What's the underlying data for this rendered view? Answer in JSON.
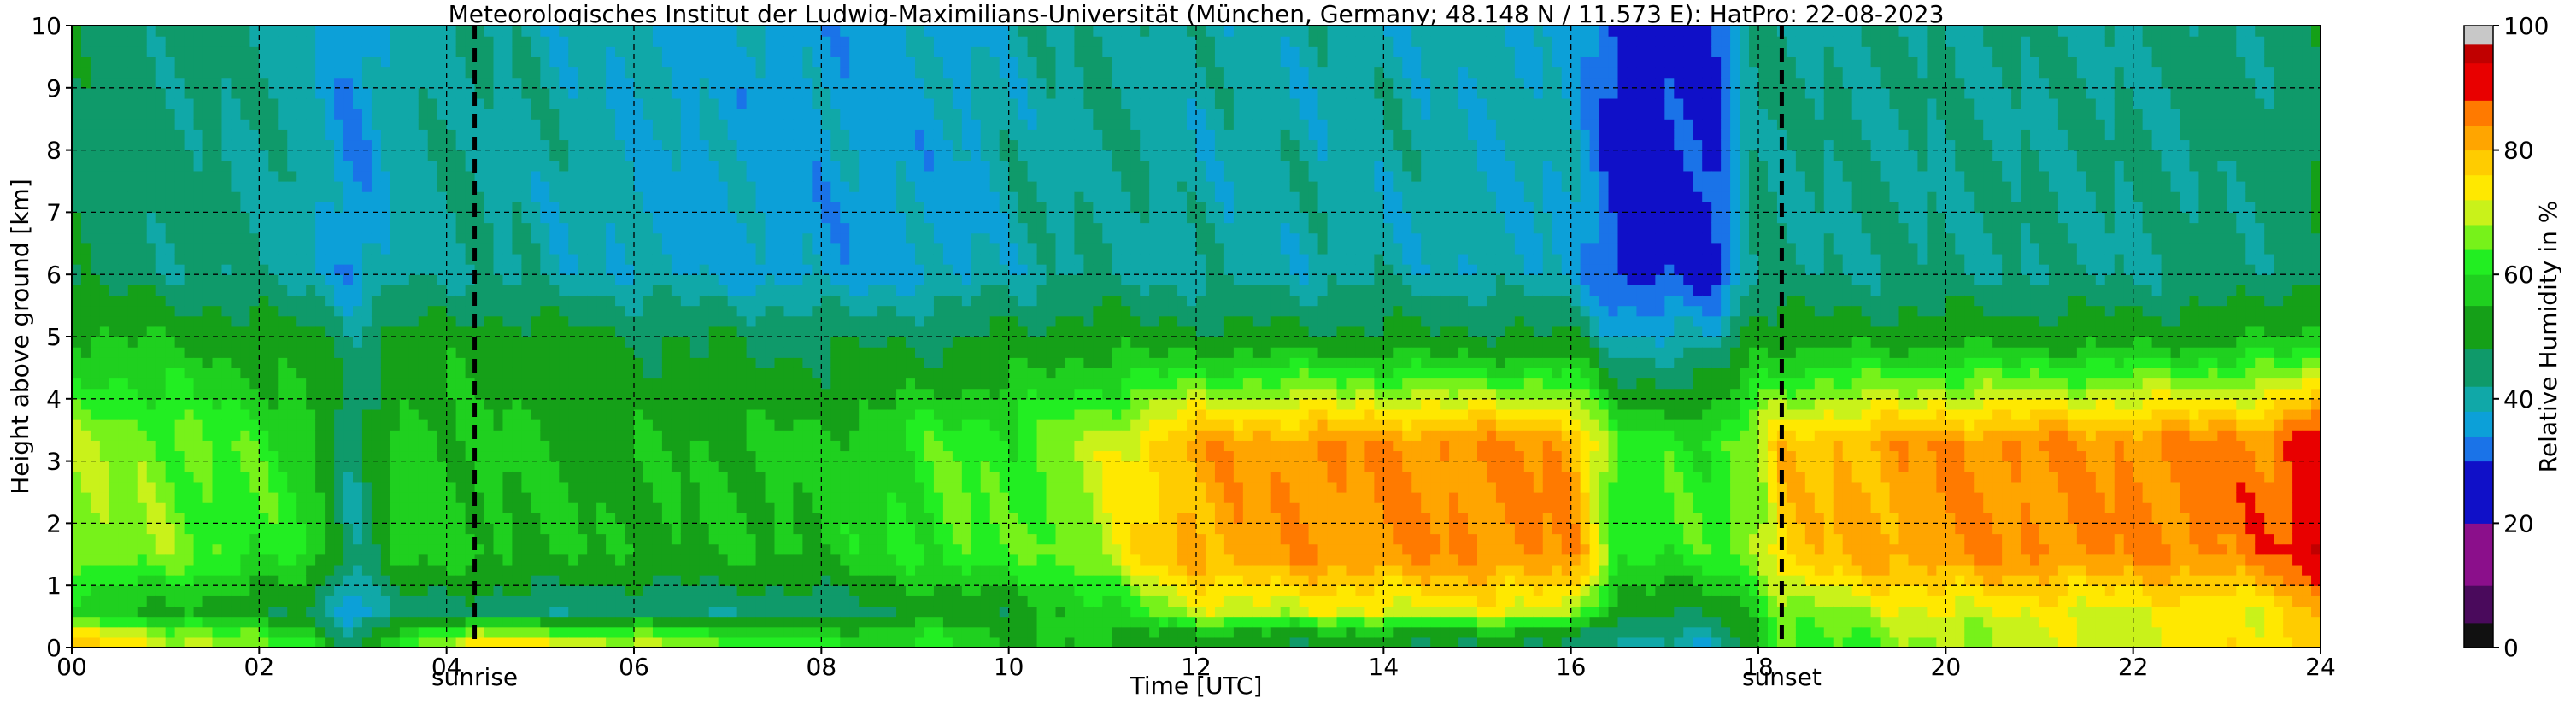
{
  "chart_data": {
    "type": "heatmap",
    "title": "Meteorologisches Institut der Ludwig-Maximilians-Universität (München, Germany; 48.148 N / 11.573 E):    HatPro: 22-08-2023",
    "xlabel": "Time [UTC]",
    "ylabel": "Height above ground [km]",
    "colorbar_label": "Relative Humidity in %",
    "xlim": [
      0,
      24
    ],
    "ylim": [
      0,
      10
    ],
    "x_ticks": [
      0,
      2,
      4,
      6,
      8,
      10,
      12,
      14,
      16,
      18,
      20,
      22,
      24
    ],
    "x_tick_labels": [
      "00",
      "02",
      "04",
      "06",
      "08",
      "10",
      "12",
      "14",
      "16",
      "18",
      "20",
      "22",
      "24"
    ],
    "y_ticks": [
      0,
      1,
      2,
      3,
      4,
      5,
      6,
      7,
      8,
      9,
      10
    ],
    "y_tick_labels": [
      "0",
      "1",
      "2",
      "3",
      "4",
      "5",
      "6",
      "7",
      "8",
      "9",
      "10"
    ],
    "colorbar_range": [
      0,
      100
    ],
    "colorbar_ticks": [
      0,
      20,
      40,
      60,
      80,
      100
    ],
    "colorbar_tick_labels": [
      "0",
      "20",
      "40",
      "60",
      "80",
      "100"
    ],
    "grid": true,
    "annotations": [
      {
        "label": "sunrise",
        "time": 4.3
      },
      {
        "label": "sunset",
        "time": 18.25
      }
    ],
    "colormap": [
      {
        "from": 0,
        "to": 4,
        "color": "#111111"
      },
      {
        "from": 4,
        "to": 10,
        "color": "#4a0a5c"
      },
      {
        "from": 10,
        "to": 20,
        "color": "#8b0f8b"
      },
      {
        "from": 20,
        "to": 30,
        "color": "#1010c8"
      },
      {
        "from": 30,
        "to": 34,
        "color": "#1a73e8"
      },
      {
        "from": 34,
        "to": 38,
        "color": "#0ca0d8"
      },
      {
        "from": 38,
        "to": 42,
        "color": "#10a8a8"
      },
      {
        "from": 42,
        "to": 48,
        "color": "#0f9a6a"
      },
      {
        "from": 48,
        "to": 55,
        "color": "#15a018"
      },
      {
        "from": 55,
        "to": 60,
        "color": "#1fd01f"
      },
      {
        "from": 60,
        "to": 64,
        "color": "#22ee22"
      },
      {
        "from": 64,
        "to": 68,
        "color": "#77f21a"
      },
      {
        "from": 68,
        "to": 72,
        "color": "#c9f21a"
      },
      {
        "from": 72,
        "to": 76,
        "color": "#ffe800"
      },
      {
        "from": 76,
        "to": 80,
        "color": "#ffcc00"
      },
      {
        "from": 80,
        "to": 84,
        "color": "#ffa500"
      },
      {
        "from": 84,
        "to": 88,
        "color": "#ff7a00"
      },
      {
        "from": 88,
        "to": 94,
        "color": "#e80000"
      },
      {
        "from": 94,
        "to": 97,
        "color": "#c00000"
      },
      {
        "from": 97,
        "to": 100,
        "color": "#c8c8c8"
      }
    ],
    "approx_profile": {
      "note_free": true,
      "series": [
        {
          "time": [
            0,
            1,
            2.5,
            3,
            3.5,
            4.3,
            6,
            8,
            9.5,
            10,
            11,
            12,
            14,
            16,
            16.5,
            17.5,
            18,
            18.25,
            20,
            22,
            23.5,
            24
          ],
          "surface_rh": [
            78,
            70,
            62,
            42,
            60,
            74,
            68,
            60,
            60,
            55,
            55,
            50,
            50,
            48,
            40,
            40,
            55,
            62,
            68,
            72,
            75,
            78
          ],
          "boundary_layer_rh": [
            68,
            66,
            60,
            42,
            58,
            56,
            54,
            56,
            64,
            62,
            70,
            82,
            84,
            84,
            62,
            62,
            68,
            78,
            84,
            84,
            86,
            94
          ],
          "upper_rh": [
            46,
            44,
            40,
            34,
            40,
            42,
            38,
            36,
            37,
            40,
            42,
            40,
            40,
            38,
            28,
            28,
            44,
            42,
            42,
            42,
            44,
            48
          ]
        }
      ]
    }
  }
}
